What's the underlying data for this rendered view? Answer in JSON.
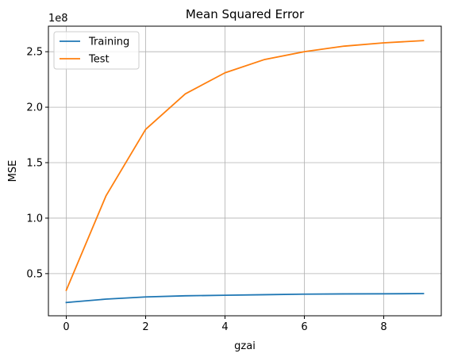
{
  "chart_data": {
    "type": "line",
    "title": "Mean Squared Error",
    "xlabel": "gzai",
    "ylabel": "MSE",
    "y_offset_label": "1e8",
    "xlim": [
      -0.45,
      9.45
    ],
    "ylim": [
      0.12,
      2.73
    ],
    "x_ticks": [
      0,
      2,
      4,
      6,
      8
    ],
    "x_tick_labels": [
      "0",
      "2",
      "4",
      "6",
      "8"
    ],
    "y_ticks": [
      0.5,
      1.0,
      1.5,
      2.0,
      2.5
    ],
    "y_tick_labels": [
      "0.5",
      "1.0",
      "1.5",
      "2.0",
      "2.5"
    ],
    "grid": true,
    "legend_position": "upper-left",
    "x": [
      0,
      1,
      2,
      3,
      4,
      5,
      6,
      7,
      8,
      9
    ],
    "series": [
      {
        "name": "Training",
        "color": "#1f77b4",
        "values": [
          0.24,
          0.27,
          0.29,
          0.3,
          0.305,
          0.31,
          0.315,
          0.317,
          0.318,
          0.32
        ]
      },
      {
        "name": "Test",
        "color": "#ff7f0e",
        "values": [
          0.35,
          1.2,
          1.8,
          2.12,
          2.31,
          2.43,
          2.5,
          2.55,
          2.58,
          2.6
        ]
      }
    ]
  }
}
